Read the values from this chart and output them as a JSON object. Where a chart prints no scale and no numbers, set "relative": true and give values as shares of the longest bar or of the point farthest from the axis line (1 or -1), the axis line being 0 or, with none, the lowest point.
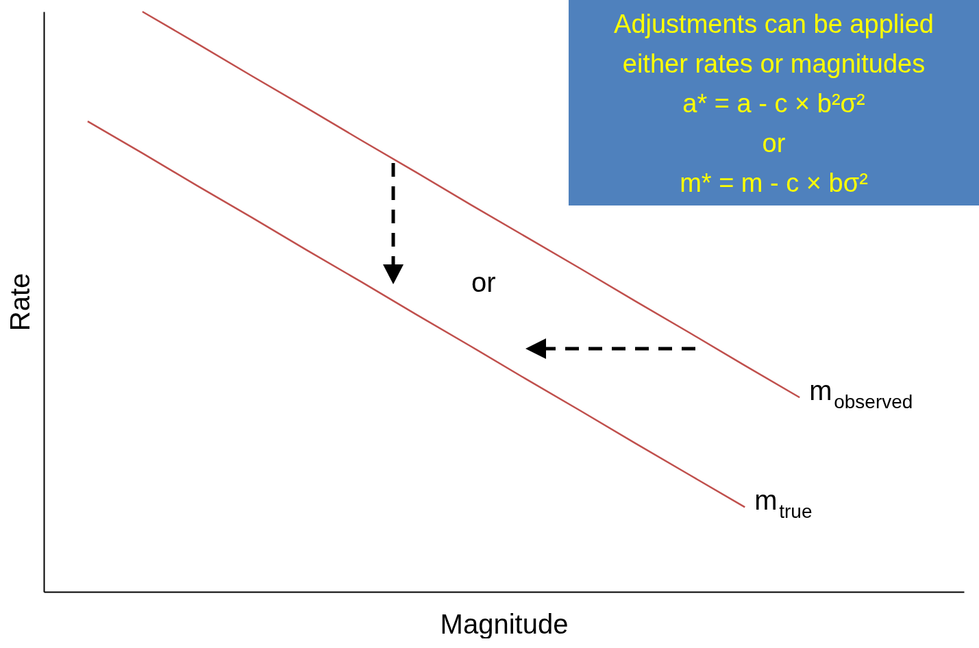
{
  "chart_data": {
    "type": "line",
    "relative": true,
    "xlabel": "Magnitude",
    "ylabel": "Rate",
    "categories": [
      null,
      null,
      null,
      null,
      null,
      null,
      null,
      null,
      null,
      null,
      null,
      null,
      null,
      null
    ],
    "series": [
      {
        "name": "m$_{observed}$",
        "color": "#c0504d",
        "values": [
          null,
          1.0,
          0.945,
          0.889,
          0.834,
          0.778,
          0.723,
          0.667,
          0.612,
          0.557,
          0.501,
          0.446,
          0.39,
          0.335
        ]
      },
      {
        "name": "m$_{true}$",
        "color": "#c0504d",
        "values": [
          0.811,
          0.756,
          0.7,
          0.645,
          0.589,
          0.534,
          0.478,
          0.423,
          0.367,
          0.312,
          0.256,
          0.201,
          0.146,
          null
        ]
      }
    ],
    "annotations": [
      "Adjustments can be applied",
      "either rates or magnitudes",
      "a* = a - c × b²σ²",
      "or",
      "m* = m - c × bσ²",
      "or"
    ]
  }
}
